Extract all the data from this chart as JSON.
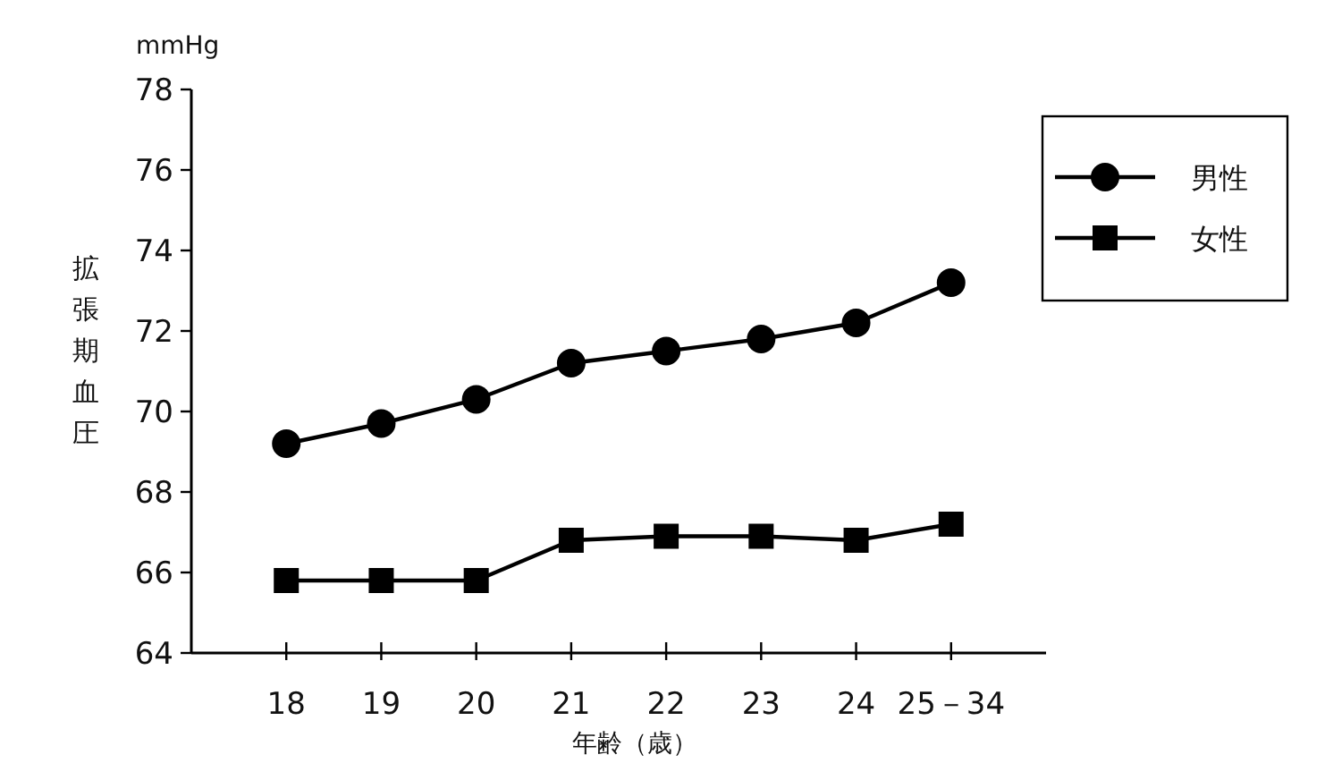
{
  "chart_data": {
    "type": "line",
    "ylabel": "拡張期血圧",
    "xlabel": "年齢（歳）",
    "annotations": [
      "mmHg"
    ],
    "categories": [
      "18",
      "19",
      "20",
      "21",
      "22",
      "23",
      "24",
      "25－34"
    ],
    "series": [
      {
        "name": "男性",
        "color": "#000000",
        "marker": "circle",
        "values": [
          69.2,
          69.7,
          70.3,
          71.2,
          71.5,
          71.8,
          72.2,
          73.2
        ]
      },
      {
        "name": "女性",
        "color": "#000000",
        "marker": "square",
        "values": [
          65.8,
          65.8,
          65.8,
          66.8,
          66.9,
          66.9,
          66.8,
          67.2
        ]
      }
    ],
    "ylim": [
      64,
      78
    ],
    "yticks": [
      64,
      66,
      68,
      70,
      72,
      74,
      76,
      78
    ],
    "grid": false,
    "legend": "top right",
    "line_style": "solid"
  }
}
